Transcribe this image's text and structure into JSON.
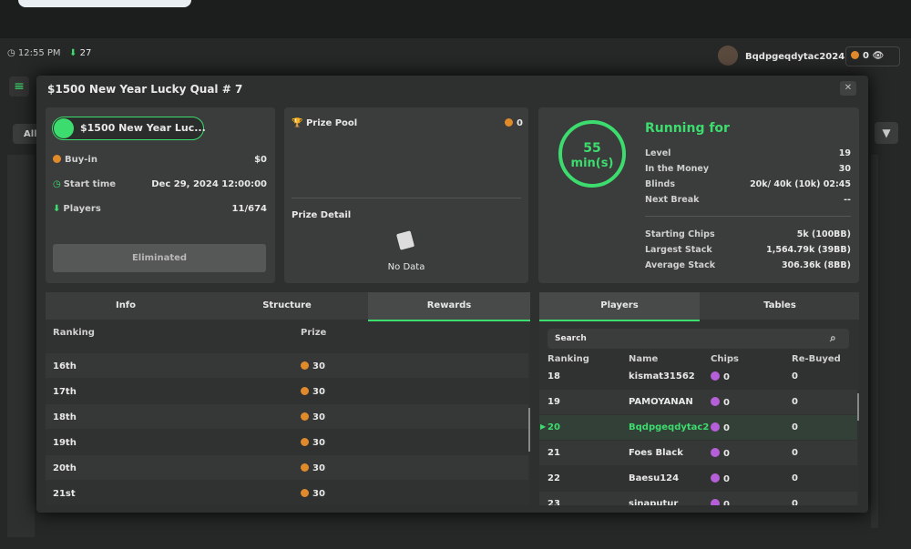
{
  "top_bar": {
    "time": "12:55 PM",
    "online": "27",
    "username": "Bqdpgeqdytac2024",
    "balance": "0"
  },
  "background": {
    "filter_label": "All"
  },
  "modal": {
    "title": "$1500 New Year Lucky Qual # 7",
    "summary": {
      "badge": "$1500 New Year Luc...",
      "rows": [
        {
          "label": "Buy-in",
          "value": "$0"
        },
        {
          "label": "Start time",
          "value": "Dec 29, 2024 12:00:00"
        },
        {
          "label": "Players",
          "value": "11/674"
        }
      ],
      "status_button": "Eliminated"
    },
    "prize": {
      "title": "Prize Pool",
      "amount": "0",
      "detail_title": "Prize Detail",
      "empty": "No Data"
    },
    "timer": {
      "value": "55",
      "unit": "min(s)",
      "title": "Running for",
      "stats": [
        {
          "label": "Level",
          "value": "19"
        },
        {
          "label": "In the Money",
          "value": "30"
        },
        {
          "label": "Blinds",
          "value": "20k/ 40k (10k) 02:45"
        },
        {
          "label": "Next Break",
          "value": "--"
        }
      ],
      "chips": [
        {
          "label": "Starting Chips",
          "value": "5k (100BB)"
        },
        {
          "label": "Largest Stack",
          "value": "1,564.79k (39BB)"
        },
        {
          "label": "Average Stack",
          "value": "306.36k (8BB)"
        }
      ]
    },
    "rewards": {
      "tabs": [
        "Info",
        "Structure",
        "Rewards"
      ],
      "columns": [
        "Ranking",
        "Prize"
      ],
      "rows": [
        [
          "16th",
          "30"
        ],
        [
          "17th",
          "30"
        ],
        [
          "18th",
          "30"
        ],
        [
          "19th",
          "30"
        ],
        [
          "20th",
          "30"
        ],
        [
          "21st",
          "30"
        ]
      ]
    },
    "players": {
      "tabs": [
        "Players",
        "Tables"
      ],
      "search_placeholder": "Search",
      "columns": [
        "Ranking",
        "Name",
        "Chips",
        "Re-Buyed"
      ],
      "rows": [
        [
          "18",
          "kismat31562",
          "0",
          "0"
        ],
        [
          "19",
          "PAMOYANAN",
          "0",
          "0"
        ],
        [
          "20",
          "Bqdpgeqdytac2",
          "0",
          "0"
        ],
        [
          "21",
          "Foes Black",
          "0",
          "0"
        ],
        [
          "22",
          "Baesu124",
          "0",
          "0"
        ],
        [
          "23",
          "sinaputur",
          "0",
          "0"
        ]
      ]
    }
  }
}
